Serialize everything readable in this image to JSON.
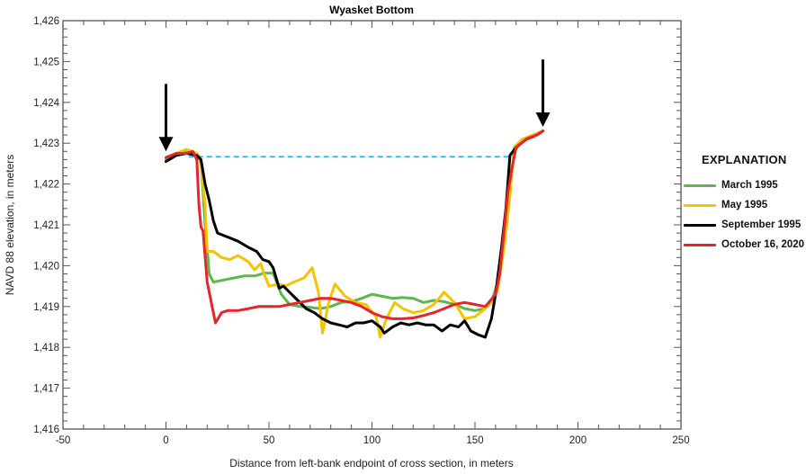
{
  "chart_data": {
    "type": "line",
    "title": "Wyasket Bottom",
    "xlabel": "Distance from left-bank endpoint of cross section, in meters",
    "ylabel": "NAVD 88 elevation, in meters",
    "xlim": [
      -50,
      250
    ],
    "ylim": [
      1416,
      1426
    ],
    "x_ticks": [
      "-50",
      "0",
      "50",
      "100",
      "150",
      "200",
      "250"
    ],
    "x_tick_values": [
      -50,
      0,
      50,
      100,
      150,
      200,
      250
    ],
    "y_ticks": [
      "1,416",
      "1,417",
      "1,418",
      "1,419",
      "1,420",
      "1,421",
      "1,422",
      "1,423",
      "1,424",
      "1,425",
      "1,426"
    ],
    "y_tick_values": [
      1416,
      1417,
      1418,
      1419,
      1420,
      1421,
      1422,
      1423,
      1424,
      1425,
      1426
    ],
    "grid": false,
    "legend_title": "EXPLANATION",
    "legend_position": "right",
    "series": [
      {
        "name": "March 1995",
        "color": "#5cb84a",
        "points": [
          [
            0,
            1422.6
          ],
          [
            5,
            1422.75
          ],
          [
            10,
            1422.8
          ],
          [
            15,
            1422.75
          ],
          [
            17,
            1422.6
          ],
          [
            19,
            1421.0
          ],
          [
            21,
            1419.8
          ],
          [
            23,
            1419.6
          ],
          [
            28,
            1419.65
          ],
          [
            33,
            1419.7
          ],
          [
            38,
            1419.75
          ],
          [
            43,
            1419.75
          ],
          [
            48,
            1419.82
          ],
          [
            52,
            1419.82
          ],
          [
            56,
            1419.3
          ],
          [
            60,
            1419.05
          ],
          [
            65,
            1419.0
          ],
          [
            70,
            1418.98
          ],
          [
            75,
            1418.95
          ],
          [
            80,
            1419.0
          ],
          [
            85,
            1419.1
          ],
          [
            90,
            1419.12
          ],
          [
            95,
            1419.2
          ],
          [
            100,
            1419.3
          ],
          [
            105,
            1419.25
          ],
          [
            110,
            1419.2
          ],
          [
            115,
            1419.22
          ],
          [
            120,
            1419.2
          ],
          [
            125,
            1419.1
          ],
          [
            130,
            1419.15
          ],
          [
            135,
            1419.12
          ],
          [
            140,
            1419.05
          ],
          [
            145,
            1418.95
          ],
          [
            150,
            1418.9
          ],
          [
            155,
            1418.95
          ],
          [
            158,
            1419.1
          ],
          [
            161,
            1419.6
          ],
          [
            164,
            1420.5
          ],
          [
            167,
            1421.8
          ],
          [
            169,
            1422.8
          ],
          [
            173,
            1423.05
          ],
          [
            178,
            1423.15
          ],
          [
            183,
            1423.3
          ]
        ]
      },
      {
        "name": "May 1995",
        "color": "#f5c400",
        "points": [
          [
            0,
            1422.65
          ],
          [
            5,
            1422.75
          ],
          [
            10,
            1422.85
          ],
          [
            15,
            1422.75
          ],
          [
            17,
            1422.5
          ],
          [
            19,
            1421.5
          ],
          [
            20,
            1420.35
          ],
          [
            23,
            1420.35
          ],
          [
            27,
            1420.2
          ],
          [
            31,
            1420.15
          ],
          [
            35,
            1420.25
          ],
          [
            40,
            1420.1
          ],
          [
            43,
            1419.9
          ],
          [
            46,
            1420.05
          ],
          [
            48,
            1419.75
          ],
          [
            50,
            1419.5
          ],
          [
            55,
            1419.55
          ],
          [
            58,
            1419.5
          ],
          [
            62,
            1419.6
          ],
          [
            67,
            1419.7
          ],
          [
            71,
            1419.95
          ],
          [
            74,
            1419.35
          ],
          [
            76,
            1418.35
          ],
          [
            79,
            1419.1
          ],
          [
            82,
            1419.55
          ],
          [
            87,
            1419.25
          ],
          [
            92,
            1419.1
          ],
          [
            97,
            1419.05
          ],
          [
            102,
            1418.75
          ],
          [
            104,
            1418.25
          ],
          [
            107,
            1418.7
          ],
          [
            111,
            1419.1
          ],
          [
            115,
            1418.95
          ],
          [
            120,
            1418.85
          ],
          [
            125,
            1418.9
          ],
          [
            130,
            1419.05
          ],
          [
            135,
            1419.35
          ],
          [
            140,
            1419.1
          ],
          [
            145,
            1418.7
          ],
          [
            150,
            1418.75
          ],
          [
            155,
            1418.95
          ],
          [
            158,
            1419.1
          ],
          [
            161,
            1419.4
          ],
          [
            164,
            1420.4
          ],
          [
            167,
            1421.7
          ],
          [
            169,
            1422.9
          ],
          [
            173,
            1423.1
          ],
          [
            178,
            1423.2
          ],
          [
            183,
            1423.3
          ]
        ]
      },
      {
        "name": "September 1995",
        "color": "#000000",
        "points": [
          [
            0,
            1422.55
          ],
          [
            5,
            1422.7
          ],
          [
            10,
            1422.75
          ],
          [
            15,
            1422.7
          ],
          [
            17,
            1422.6
          ],
          [
            19,
            1422.0
          ],
          [
            21,
            1421.6
          ],
          [
            23,
            1421.1
          ],
          [
            25,
            1420.8
          ],
          [
            30,
            1420.7
          ],
          [
            35,
            1420.6
          ],
          [
            40,
            1420.45
          ],
          [
            44,
            1420.35
          ],
          [
            47,
            1420.15
          ],
          [
            50,
            1420.1
          ],
          [
            52,
            1419.95
          ],
          [
            55,
            1419.45
          ],
          [
            57,
            1419.5
          ],
          [
            60,
            1419.35
          ],
          [
            64,
            1419.15
          ],
          [
            68,
            1418.95
          ],
          [
            72,
            1418.85
          ],
          [
            76,
            1418.7
          ],
          [
            80,
            1418.6
          ],
          [
            84,
            1418.55
          ],
          [
            88,
            1418.5
          ],
          [
            92,
            1418.6
          ],
          [
            96,
            1418.6
          ],
          [
            100,
            1418.65
          ],
          [
            104,
            1418.5
          ],
          [
            106,
            1418.35
          ],
          [
            110,
            1418.5
          ],
          [
            114,
            1418.6
          ],
          [
            118,
            1418.55
          ],
          [
            122,
            1418.6
          ],
          [
            126,
            1418.55
          ],
          [
            130,
            1418.55
          ],
          [
            134,
            1418.4
          ],
          [
            138,
            1418.55
          ],
          [
            142,
            1418.5
          ],
          [
            145,
            1418.65
          ],
          [
            148,
            1418.4
          ],
          [
            152,
            1418.3
          ],
          [
            155,
            1418.25
          ],
          [
            158,
            1418.7
          ],
          [
            160,
            1419.3
          ],
          [
            163,
            1420.5
          ],
          [
            165,
            1421.4
          ],
          [
            167,
            1422.7
          ],
          [
            170,
            1422.9
          ],
          [
            175,
            1423.1
          ],
          [
            180,
            1423.2
          ],
          [
            183,
            1423.3
          ]
        ]
      },
      {
        "name": "October 16, 2020",
        "color": "#e8242a",
        "points": [
          [
            0,
            1422.65
          ],
          [
            5,
            1422.75
          ],
          [
            10,
            1422.75
          ],
          [
            13,
            1422.8
          ],
          [
            15,
            1422.6
          ],
          [
            16,
            1421.5
          ],
          [
            17,
            1420.95
          ],
          [
            18,
            1420.85
          ],
          [
            20,
            1419.6
          ],
          [
            22,
            1419.1
          ],
          [
            24,
            1418.6
          ],
          [
            27,
            1418.85
          ],
          [
            30,
            1418.9
          ],
          [
            35,
            1418.9
          ],
          [
            40,
            1418.95
          ],
          [
            45,
            1419.0
          ],
          [
            50,
            1419.0
          ],
          [
            55,
            1419.0
          ],
          [
            60,
            1419.05
          ],
          [
            65,
            1419.1
          ],
          [
            70,
            1419.15
          ],
          [
            75,
            1419.2
          ],
          [
            80,
            1419.2
          ],
          [
            85,
            1419.15
          ],
          [
            90,
            1419.1
          ],
          [
            95,
            1419.0
          ],
          [
            100,
            1418.85
          ],
          [
            105,
            1418.75
          ],
          [
            110,
            1418.7
          ],
          [
            115,
            1418.7
          ],
          [
            120,
            1418.72
          ],
          [
            125,
            1418.78
          ],
          [
            130,
            1418.85
          ],
          [
            135,
            1418.95
          ],
          [
            140,
            1419.05
          ],
          [
            145,
            1419.1
          ],
          [
            150,
            1419.05
          ],
          [
            155,
            1419.0
          ],
          [
            160,
            1419.3
          ],
          [
            162,
            1419.8
          ],
          [
            164,
            1420.8
          ],
          [
            166,
            1421.8
          ],
          [
            168,
            1422.4
          ],
          [
            170,
            1422.9
          ],
          [
            175,
            1423.1
          ],
          [
            180,
            1423.2
          ],
          [
            183,
            1423.3
          ]
        ]
      }
    ],
    "annotations": [
      {
        "type": "arrow",
        "label": "left-bank endpoint arrow",
        "x": 0,
        "y_from": 1424.45,
        "y_to": 1422.8
      },
      {
        "type": "arrow",
        "label": "right-bank endpoint arrow",
        "x": 183,
        "y_from": 1425.05,
        "y_to": 1423.4
      },
      {
        "type": "dashed-line",
        "label": "water level",
        "color": "#29b6e8",
        "x_from": 11,
        "x_to": 168,
        "y": 1422.67
      }
    ]
  }
}
